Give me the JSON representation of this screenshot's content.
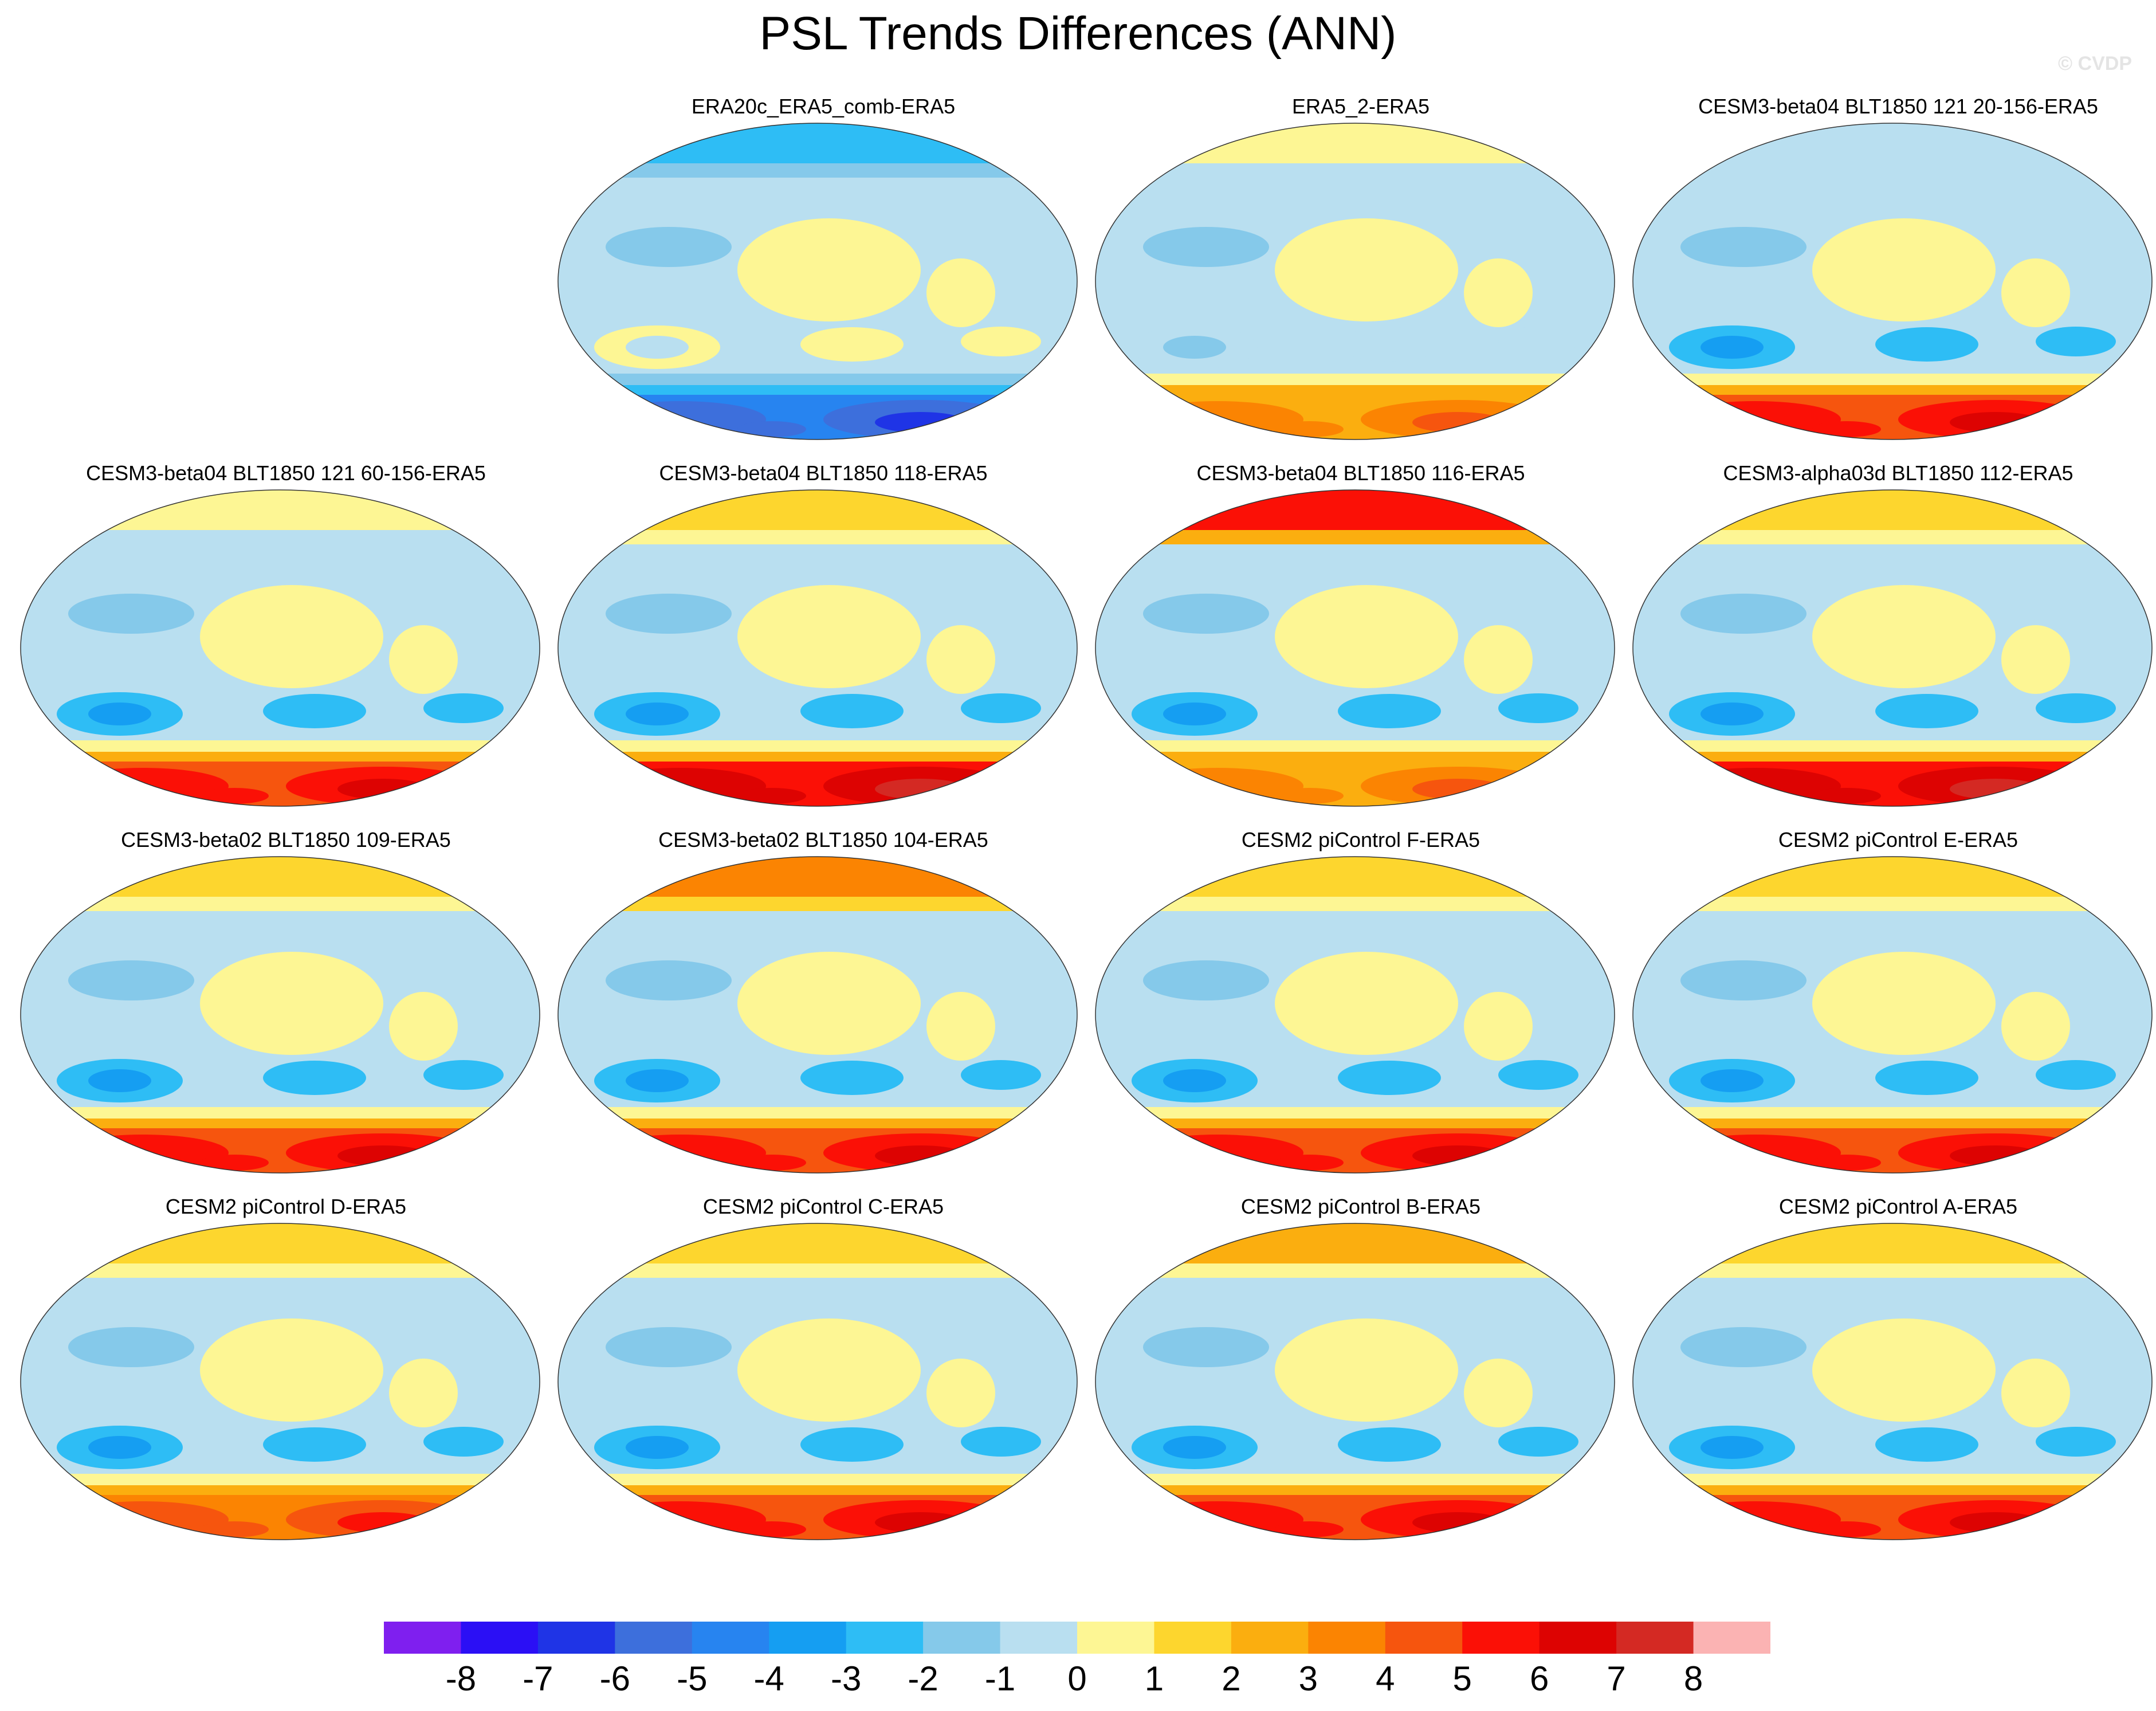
{
  "title": "PSL Trends Differences (ANN)",
  "watermark": "© CVDP",
  "colors": {
    "levels": [
      "#7f1fef",
      "#2b0ff5",
      "#1f34e6",
      "#3d6fdc",
      "#2784f0",
      "#159ef2",
      "#2ebdf5",
      "#85c9ea",
      "#b9dff0",
      "#fdf694",
      "#fdd62e",
      "#fbae0f",
      "#fb8402",
      "#f6550e",
      "#fb1006",
      "#dd0302",
      "#d42923",
      "#fbb3b3"
    ]
  },
  "colorbar": {
    "tick_labels": [
      "-8",
      "-7",
      "-6",
      "-5",
      "-4",
      "-3",
      "-2",
      "-1",
      "0",
      "1",
      "2",
      "3",
      "4",
      "5",
      "6",
      "7",
      "8"
    ]
  },
  "chart_data": {
    "type": "heatmap",
    "title": "PSL Trends Differences (ANN)",
    "projection": "robinson",
    "levels": [
      -8,
      -7,
      -6,
      -5,
      -4,
      -3,
      -2,
      -1,
      0,
      1,
      2,
      3,
      4,
      5,
      6,
      7,
      8
    ],
    "panels": [
      {
        "name": "ERA20c_ERA5_comb-ERA5",
        "row": 0,
        "col": 1,
        "south": -6,
        "north": -3,
        "tropics": 0.5,
        "midsouth": 0.5
      },
      {
        "name": "ERA5_2-ERA5",
        "row": 0,
        "col": 2,
        "south": 3,
        "north": 0.5,
        "tropics": 0.5,
        "midsouth": -1
      },
      {
        "name": "CESM3-beta04 BLT1850 121 20-156-ERA5",
        "row": 0,
        "col": 3,
        "south": 5,
        "north": -1,
        "tropics": 0.5,
        "midsouth": -3
      },
      {
        "name": "CESM3-beta04 BLT1850 121 60-156-ERA5",
        "row": 1,
        "col": 0,
        "south": 5,
        "north": 0.5,
        "tropics": 0.5,
        "midsouth": -3
      },
      {
        "name": "CESM3-beta04 BLT1850 118-ERA5",
        "row": 1,
        "col": 1,
        "south": 6,
        "north": 1,
        "tropics": 0.5,
        "midsouth": -3
      },
      {
        "name": "CESM3-beta04 BLT1850 116-ERA5",
        "row": 1,
        "col": 2,
        "south": 3,
        "north": 5,
        "tropics": 0.5,
        "midsouth": -3
      },
      {
        "name": "CESM3-alpha03d BLT1850 112-ERA5",
        "row": 1,
        "col": 3,
        "south": 6,
        "north": 1,
        "tropics": 0.5,
        "midsouth": -3
      },
      {
        "name": "CESM3-beta02 BLT1850 109-ERA5",
        "row": 2,
        "col": 0,
        "south": 5,
        "north": 1,
        "tropics": 0.5,
        "midsouth": -3
      },
      {
        "name": "CESM3-beta02 BLT1850 104-ERA5",
        "row": 2,
        "col": 1,
        "south": 5,
        "north": 3,
        "tropics": 0.5,
        "midsouth": -3
      },
      {
        "name": "CESM2 piControl F-ERA5",
        "row": 2,
        "col": 2,
        "south": 5,
        "north": 1,
        "tropics": 0.5,
        "midsouth": -3
      },
      {
        "name": "CESM2 piControl E-ERA5",
        "row": 2,
        "col": 3,
        "south": 5,
        "north": 1,
        "tropics": 0.5,
        "midsouth": -3
      },
      {
        "name": "CESM2 piControl D-ERA5",
        "row": 3,
        "col": 0,
        "south": 4,
        "north": 1,
        "tropics": 0.5,
        "midsouth": -3
      },
      {
        "name": "CESM2 piControl C-ERA5",
        "row": 3,
        "col": 1,
        "south": 5,
        "north": 1,
        "tropics": 0.5,
        "midsouth": -3
      },
      {
        "name": "CESM2 piControl B-ERA5",
        "row": 3,
        "col": 2,
        "south": 5,
        "north": 2,
        "tropics": 0.5,
        "midsouth": -3
      },
      {
        "name": "CESM2 piControl A-ERA5",
        "row": 3,
        "col": 3,
        "south": 5,
        "north": 1,
        "tropics": 0.5,
        "midsouth": -3
      }
    ]
  }
}
